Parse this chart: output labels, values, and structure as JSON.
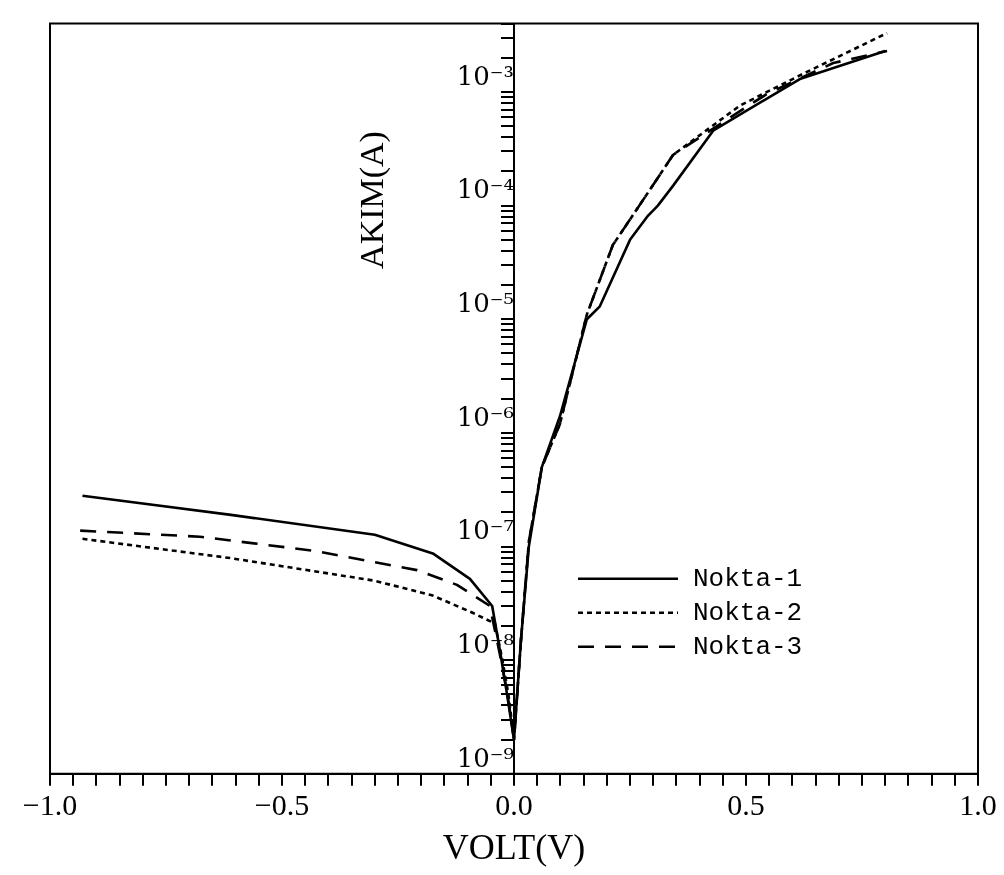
{
  "chart_data": {
    "type": "line",
    "xlabel": "VOLT(V)",
    "ylabel": "AKIM(A)",
    "log": "y",
    "grid": false,
    "legend": "bottom right",
    "marker": "none",
    "xlim": [
      -1,
      1
    ],
    "ylim": [
      1e-09,
      0.004
    ],
    "xticks": [
      {
        "value": -1,
        "label": "−1.0"
      },
      {
        "value": -0.95,
        "label": null
      },
      {
        "value": -0.9,
        "label": null
      },
      {
        "value": -0.85,
        "label": null
      },
      {
        "value": -0.8,
        "label": null
      },
      {
        "value": -0.75,
        "label": null
      },
      {
        "value": -0.7,
        "label": null
      },
      {
        "value": -0.65,
        "label": null
      },
      {
        "value": -0.6,
        "label": null
      },
      {
        "value": -0.55,
        "label": null
      },
      {
        "value": -0.5,
        "label": "−0.5"
      },
      {
        "value": -0.45,
        "label": null
      },
      {
        "value": -0.4,
        "label": null
      },
      {
        "value": -0.35,
        "label": null
      },
      {
        "value": -0.3,
        "label": null
      },
      {
        "value": -0.25,
        "label": null
      },
      {
        "value": -0.2,
        "label": null
      },
      {
        "value": -0.15,
        "label": null
      },
      {
        "value": -0.1,
        "label": null
      },
      {
        "value": -0.05,
        "label": null
      },
      {
        "value": 0,
        "label": "0.0"
      },
      {
        "value": 0.05,
        "label": null
      },
      {
        "value": 0.1,
        "label": null
      },
      {
        "value": 0.15,
        "label": null
      },
      {
        "value": 0.2,
        "label": null
      },
      {
        "value": 0.25,
        "label": null
      },
      {
        "value": 0.3,
        "label": null
      },
      {
        "value": 0.35,
        "label": null
      },
      {
        "value": 0.4,
        "label": null
      },
      {
        "value": 0.45,
        "label": null
      },
      {
        "value": 0.5,
        "label": "0.5"
      },
      {
        "value": 0.55,
        "label": null
      },
      {
        "value": 0.6,
        "label": null
      },
      {
        "value": 0.65,
        "label": null
      },
      {
        "value": 0.7,
        "label": null
      },
      {
        "value": 0.75,
        "label": null
      },
      {
        "value": 0.8,
        "label": null
      },
      {
        "value": 0.85,
        "label": null
      },
      {
        "value": 0.9,
        "label": null
      },
      {
        "value": 0.95,
        "label": null
      },
      {
        "value": 1,
        "label": "1.0"
      }
    ],
    "yticks": [
      {
        "value": 1e-09,
        "label": "10⁻⁹"
      },
      {
        "value": 2e-09,
        "label": null
      },
      {
        "value": 3e-09,
        "label": null
      },
      {
        "value": 4e-09,
        "label": null
      },
      {
        "value": 5e-09,
        "label": null
      },
      {
        "value": 6e-09,
        "label": null
      },
      {
        "value": 7e-09,
        "label": null
      },
      {
        "value": 8e-09,
        "label": null
      },
      {
        "value": 9e-09,
        "label": null
      },
      {
        "value": 1e-08,
        "label": "10⁻⁸"
      },
      {
        "value": 2e-08,
        "label": null
      },
      {
        "value": 3e-08,
        "label": null
      },
      {
        "value": 4e-08,
        "label": null
      },
      {
        "value": 5e-08,
        "label": null
      },
      {
        "value": 6e-08,
        "label": null
      },
      {
        "value": 7e-08,
        "label": null
      },
      {
        "value": 8e-08,
        "label": null
      },
      {
        "value": 9e-08,
        "label": null
      },
      {
        "value": 1e-07,
        "label": "10⁻⁷"
      },
      {
        "value": 2e-07,
        "label": null
      },
      {
        "value": 3e-07,
        "label": null
      },
      {
        "value": 4e-07,
        "label": null
      },
      {
        "value": 5e-07,
        "label": null
      },
      {
        "value": 6e-07,
        "label": null
      },
      {
        "value": 7e-07,
        "label": null
      },
      {
        "value": 8e-07,
        "label": null
      },
      {
        "value": 9e-07,
        "label": null
      },
      {
        "value": 1e-06,
        "label": "10⁻⁶"
      },
      {
        "value": 2e-06,
        "label": null
      },
      {
        "value": 3e-06,
        "label": null
      },
      {
        "value": 4e-06,
        "label": null
      },
      {
        "value": 5e-06,
        "label": null
      },
      {
        "value": 6e-06,
        "label": null
      },
      {
        "value": 7e-06,
        "label": null
      },
      {
        "value": 8e-06,
        "label": null
      },
      {
        "value": 9e-06,
        "label": null
      },
      {
        "value": 1e-05,
        "label": "10⁻⁵"
      },
      {
        "value": 2e-05,
        "label": null
      },
      {
        "value": 3e-05,
        "label": null
      },
      {
        "value": 4e-05,
        "label": null
      },
      {
        "value": 5e-05,
        "label": null
      },
      {
        "value": 6e-05,
        "label": null
      },
      {
        "value": 7e-05,
        "label": null
      },
      {
        "value": 8e-05,
        "label": null
      },
      {
        "value": 9e-05,
        "label": null
      },
      {
        "value": 0.0001,
        "label": "10⁻⁴"
      },
      {
        "value": 0.0002,
        "label": null
      },
      {
        "value": 0.0003,
        "label": null
      },
      {
        "value": 0.0004,
        "label": null
      },
      {
        "value": 0.0005,
        "label": null
      },
      {
        "value": 0.0006,
        "label": null
      },
      {
        "value": 0.0007,
        "label": null
      },
      {
        "value": 0.0008,
        "label": null
      },
      {
        "value": 0.0009,
        "label": null
      },
      {
        "value": 0.001,
        "label": "10⁻³"
      },
      {
        "value": 0.002,
        "label": null
      },
      {
        "value": 0.003,
        "label": null
      },
      {
        "value": 0.004,
        "label": null
      }
    ],
    "series": [
      {
        "name": "Nokta-1",
        "color": "#000000",
        "line_style": "solid",
        "x": [
          -0.93,
          -0.61,
          -0.3,
          -0.175,
          -0.095,
          -0.047,
          -0.03,
          -0.015,
          0,
          0.015,
          0.032,
          0.06,
          0.099,
          0.157,
          0.185,
          0.25,
          0.287,
          0.31,
          0.343,
          0.43,
          0.616,
          0.8
        ],
        "values": [
          2.8e-07,
          1.9e-07,
          1.27e-07,
          8.7e-08,
          5.2e-08,
          3e-08,
          1.2e-08,
          5e-09,
          2e-09,
          1.5e-08,
          1e-07,
          5e-07,
          1.4e-06,
          1e-05,
          1.3e-05,
          5e-05,
          8e-05,
          0.0001,
          0.00015,
          0.00046,
          0.0013,
          0.0023
        ]
      },
      {
        "name": "Nokta-2",
        "color": "#000000",
        "line_style": "dotted",
        "x": [
          -0.93,
          -0.61,
          -0.3,
          -0.175,
          -0.088,
          -0.041,
          -0.025,
          -0.012,
          0,
          0.015,
          0.032,
          0.06,
          0.099,
          0.157,
          0.213,
          0.27,
          0.343,
          0.487,
          0.616,
          0.804
        ],
        "values": [
          1.17e-07,
          7.9e-08,
          5e-08,
          3.7e-08,
          2.6e-08,
          2.1e-08,
          1e-08,
          5e-09,
          2e-09,
          1.5e-08,
          1.1e-07,
          5e-07,
          1.2e-06,
          1.1e-05,
          4.5e-05,
          0.0001,
          0.00028,
          0.00076,
          0.0014,
          0.0033
        ]
      },
      {
        "name": "Nokta-3",
        "color": "#000000",
        "line_style": "dashed",
        "x": [
          -0.935,
          -0.677,
          -0.433,
          -0.209,
          -0.123,
          -0.052,
          -0.03,
          -0.014,
          0,
          0.015,
          0.032,
          0.06,
          0.099,
          0.157,
          0.213,
          0.27,
          0.343,
          0.487,
          0.545,
          0.688,
          0.804
        ],
        "values": [
          1.38e-07,
          1.22e-07,
          9.2e-08,
          6.2e-08,
          4.6e-08,
          3e-08,
          1.1e-08,
          5e-09,
          2e-09,
          1.5e-08,
          1.1e-07,
          5e-07,
          1.2e-06,
          1.1e-05,
          4.5e-05,
          0.0001,
          0.00028,
          0.00068,
          0.00096,
          0.0018,
          0.0023
        ]
      }
    ]
  }
}
